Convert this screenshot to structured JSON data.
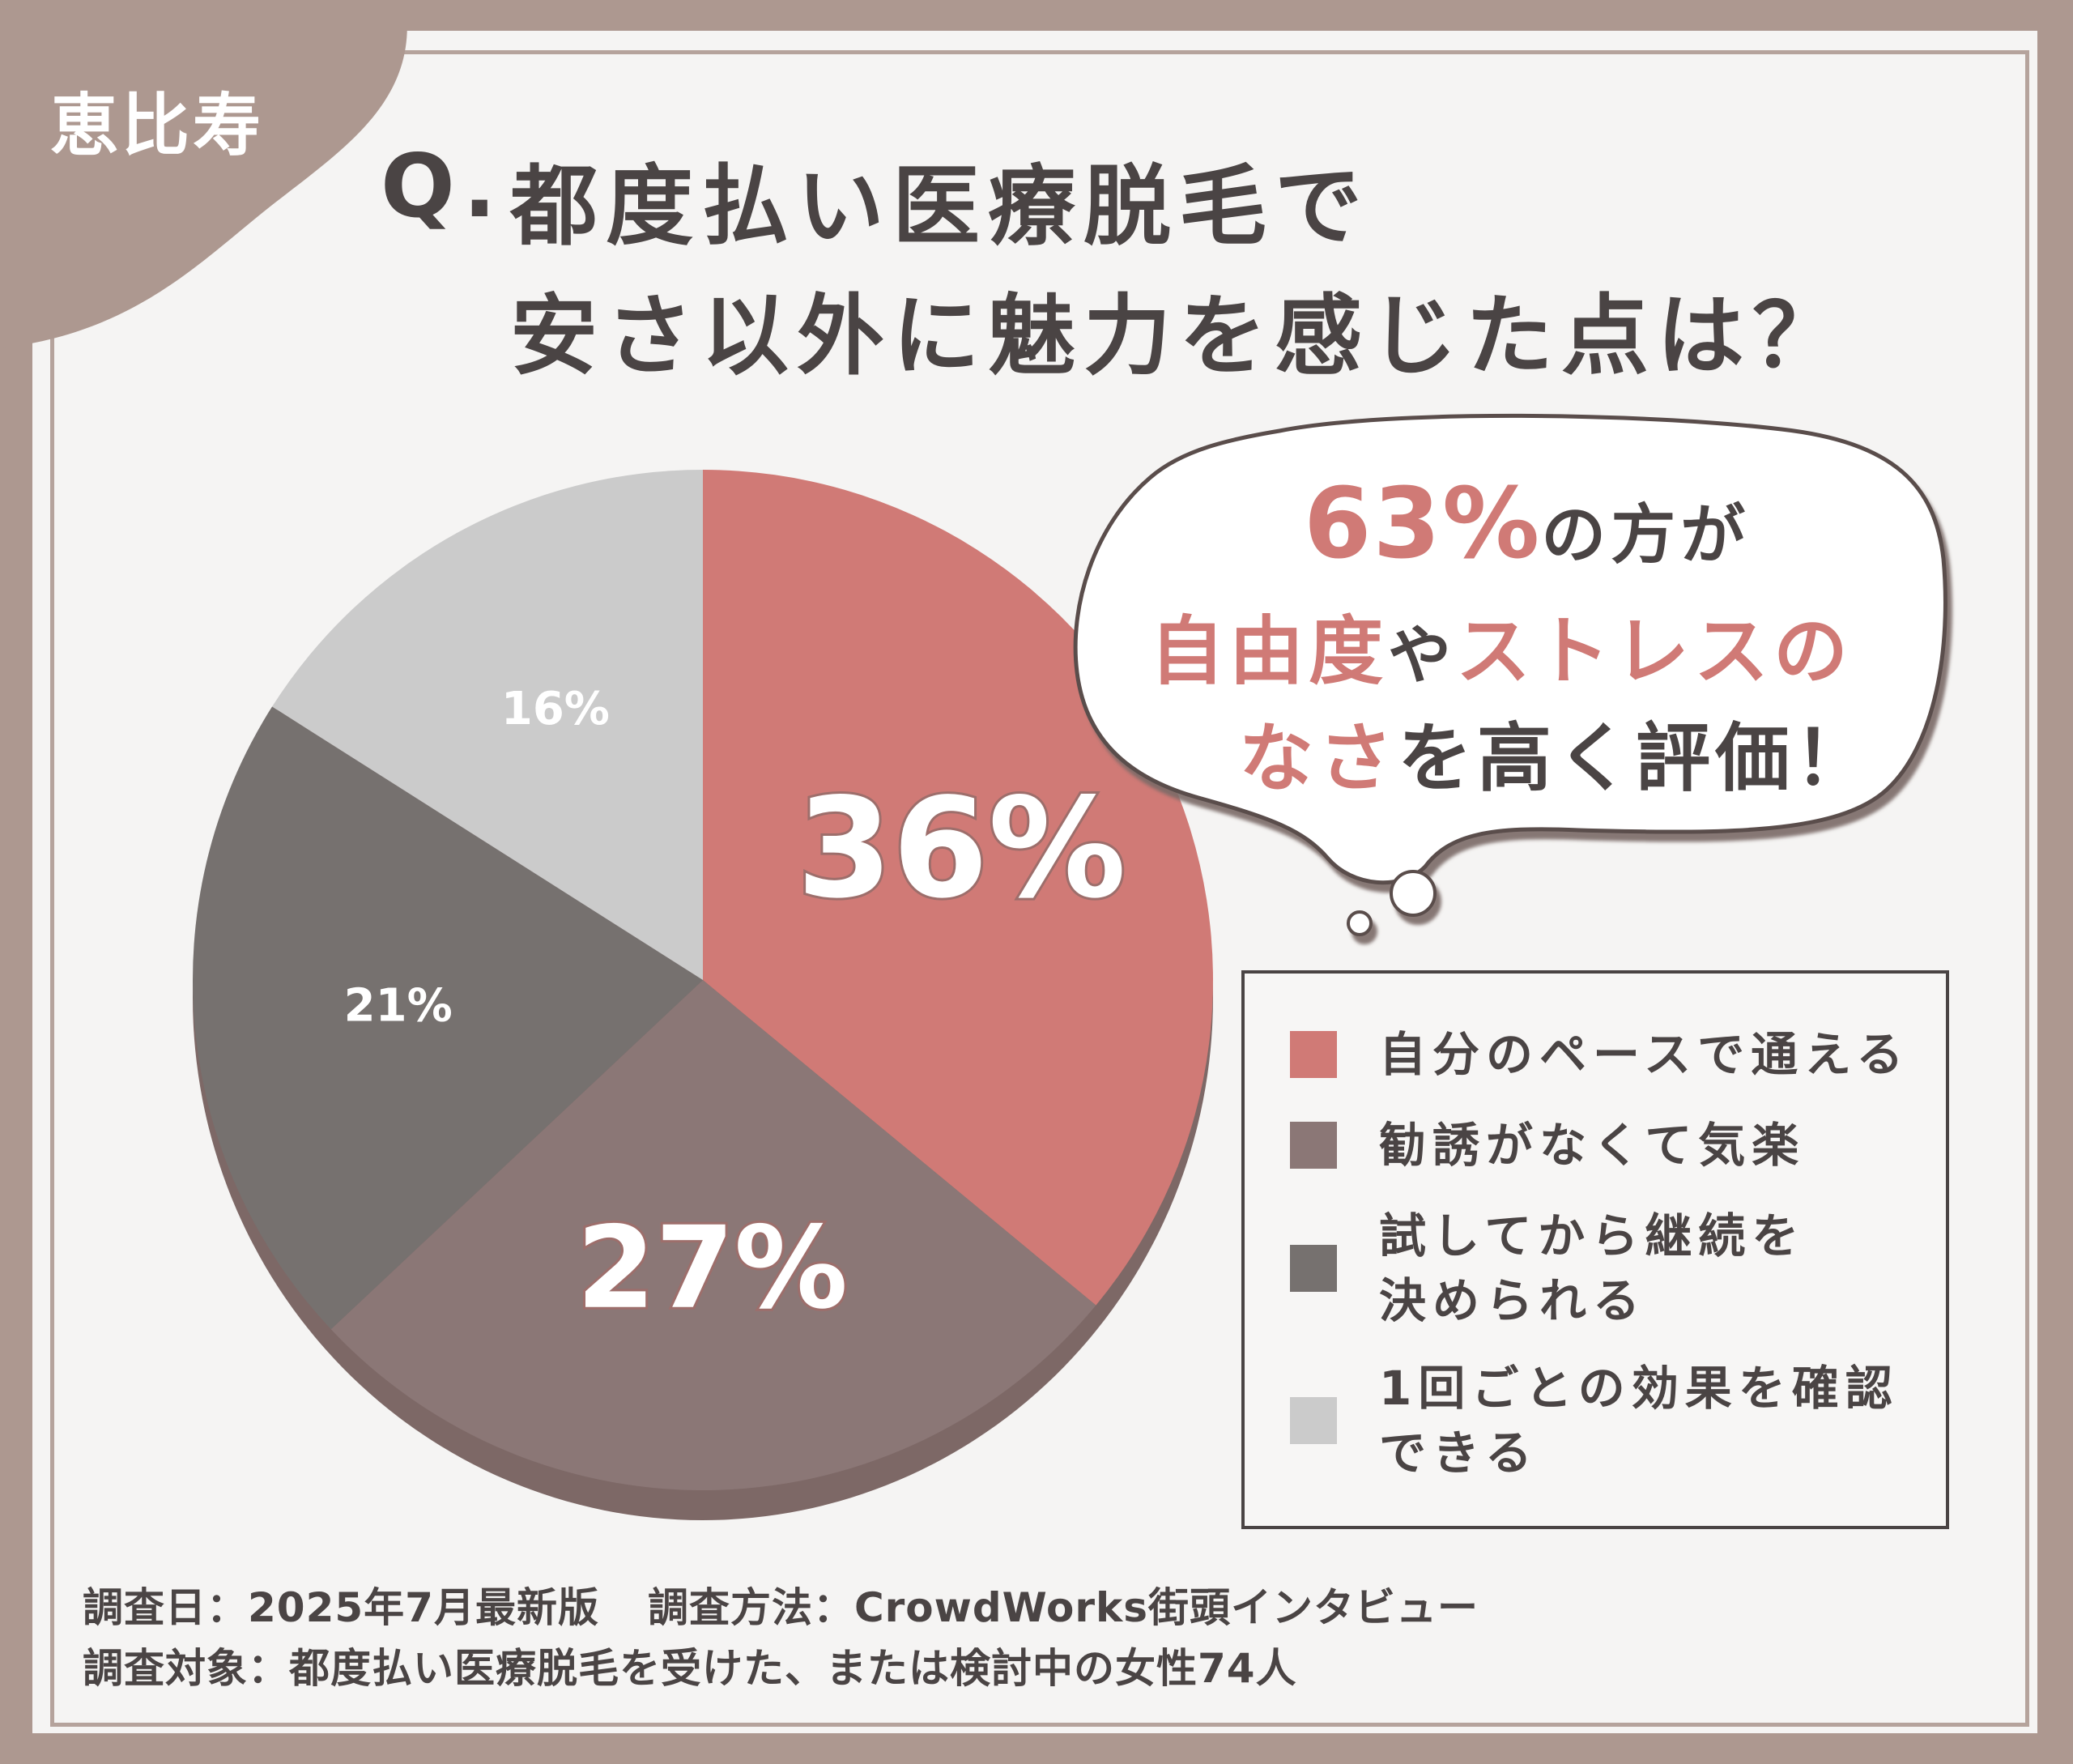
{
  "area_tag": "恵比寿",
  "title": {
    "q_prefix": "Q.",
    "line1": "都度払い医療脱毛で",
    "line2": "安さ以外に魅力を感じた点は？"
  },
  "bubble": {
    "line1_highlight": "63%",
    "line1_rest": "の方が",
    "line2_hl_a": "自由度",
    "line2_mid": "や",
    "line2_hl_b": "ストレスの",
    "line3_hl": "なさ",
    "line3_rest": "を高く評価！"
  },
  "colors": {
    "accent_rose": "#d07a76",
    "mauve": "#8b7776",
    "dark_gray": "#76716f",
    "light_gray": "#cbcbcb",
    "frame": "#ad9890",
    "text": "#4a4444"
  },
  "chart_data": {
    "type": "pie",
    "categories": [
      "自分のペースで通える",
      "勧誘がなくて気楽",
      "試してから継続を決められる",
      "1回ごとの効果を確認できる"
    ],
    "values": [
      36,
      27,
      21,
      16
    ],
    "value_labels": [
      "36%",
      "27%",
      "21%",
      "16%"
    ],
    "legend_placement": "right",
    "start": "top, clockwise"
  },
  "legend": [
    {
      "lines": [
        "自分のペースで通える"
      ]
    },
    {
      "lines": [
        "勧誘がなくて気楽"
      ]
    },
    {
      "lines": [
        "試してから継続を",
        "決められる"
      ]
    },
    {
      "lines": [
        "1回ごとの効果を確認",
        "できる"
      ]
    }
  ],
  "footer": {
    "date_label": "調査日：2025年7月最新版",
    "method_label": "調査方法：CrowdWorks街頭インタビュー",
    "target_label": "調査対象：都度払い医療脱毛を受けた、または検討中の女性74人"
  }
}
